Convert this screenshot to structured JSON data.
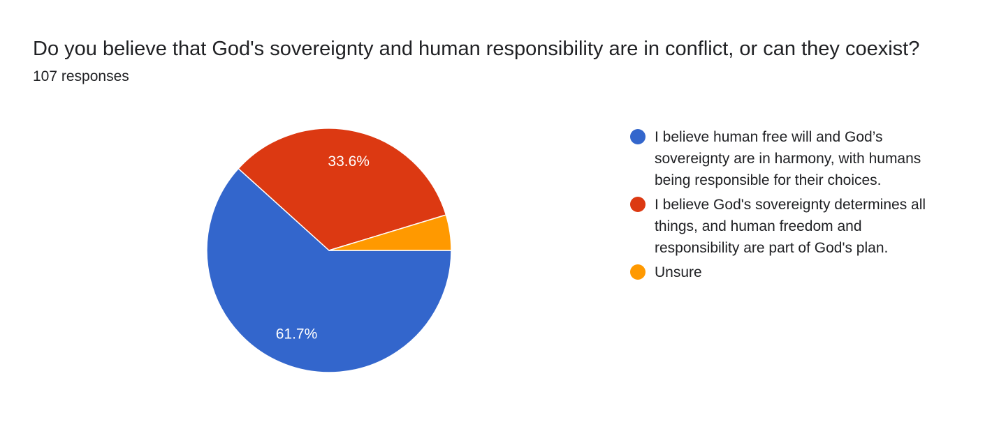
{
  "header": {
    "question": "Do you believe that God's sovereignty and human responsibility are in conflict, or can they coexist?",
    "responses": "107 responses"
  },
  "chart_data": {
    "type": "pie",
    "title": "Do you believe that God's sovereignty and human responsibility are in conflict, or can they coexist?",
    "total_responses": 107,
    "slices": [
      {
        "label": "I believe human free will and God’s sovereignty are in harmony, with humans being responsible for their choices.",
        "value": 61.7,
        "display": "61.7%",
        "color": "#3366cc"
      },
      {
        "label": "I believe God's sovereignty determines all things, and human freedom and responsibility are part of God's plan.",
        "value": 33.6,
        "display": "33.6%",
        "color": "#dc3912"
      },
      {
        "label": "Unsure",
        "value": 4.7,
        "display": "",
        "color": "#ff9900"
      }
    ],
    "legend_position": "right"
  }
}
